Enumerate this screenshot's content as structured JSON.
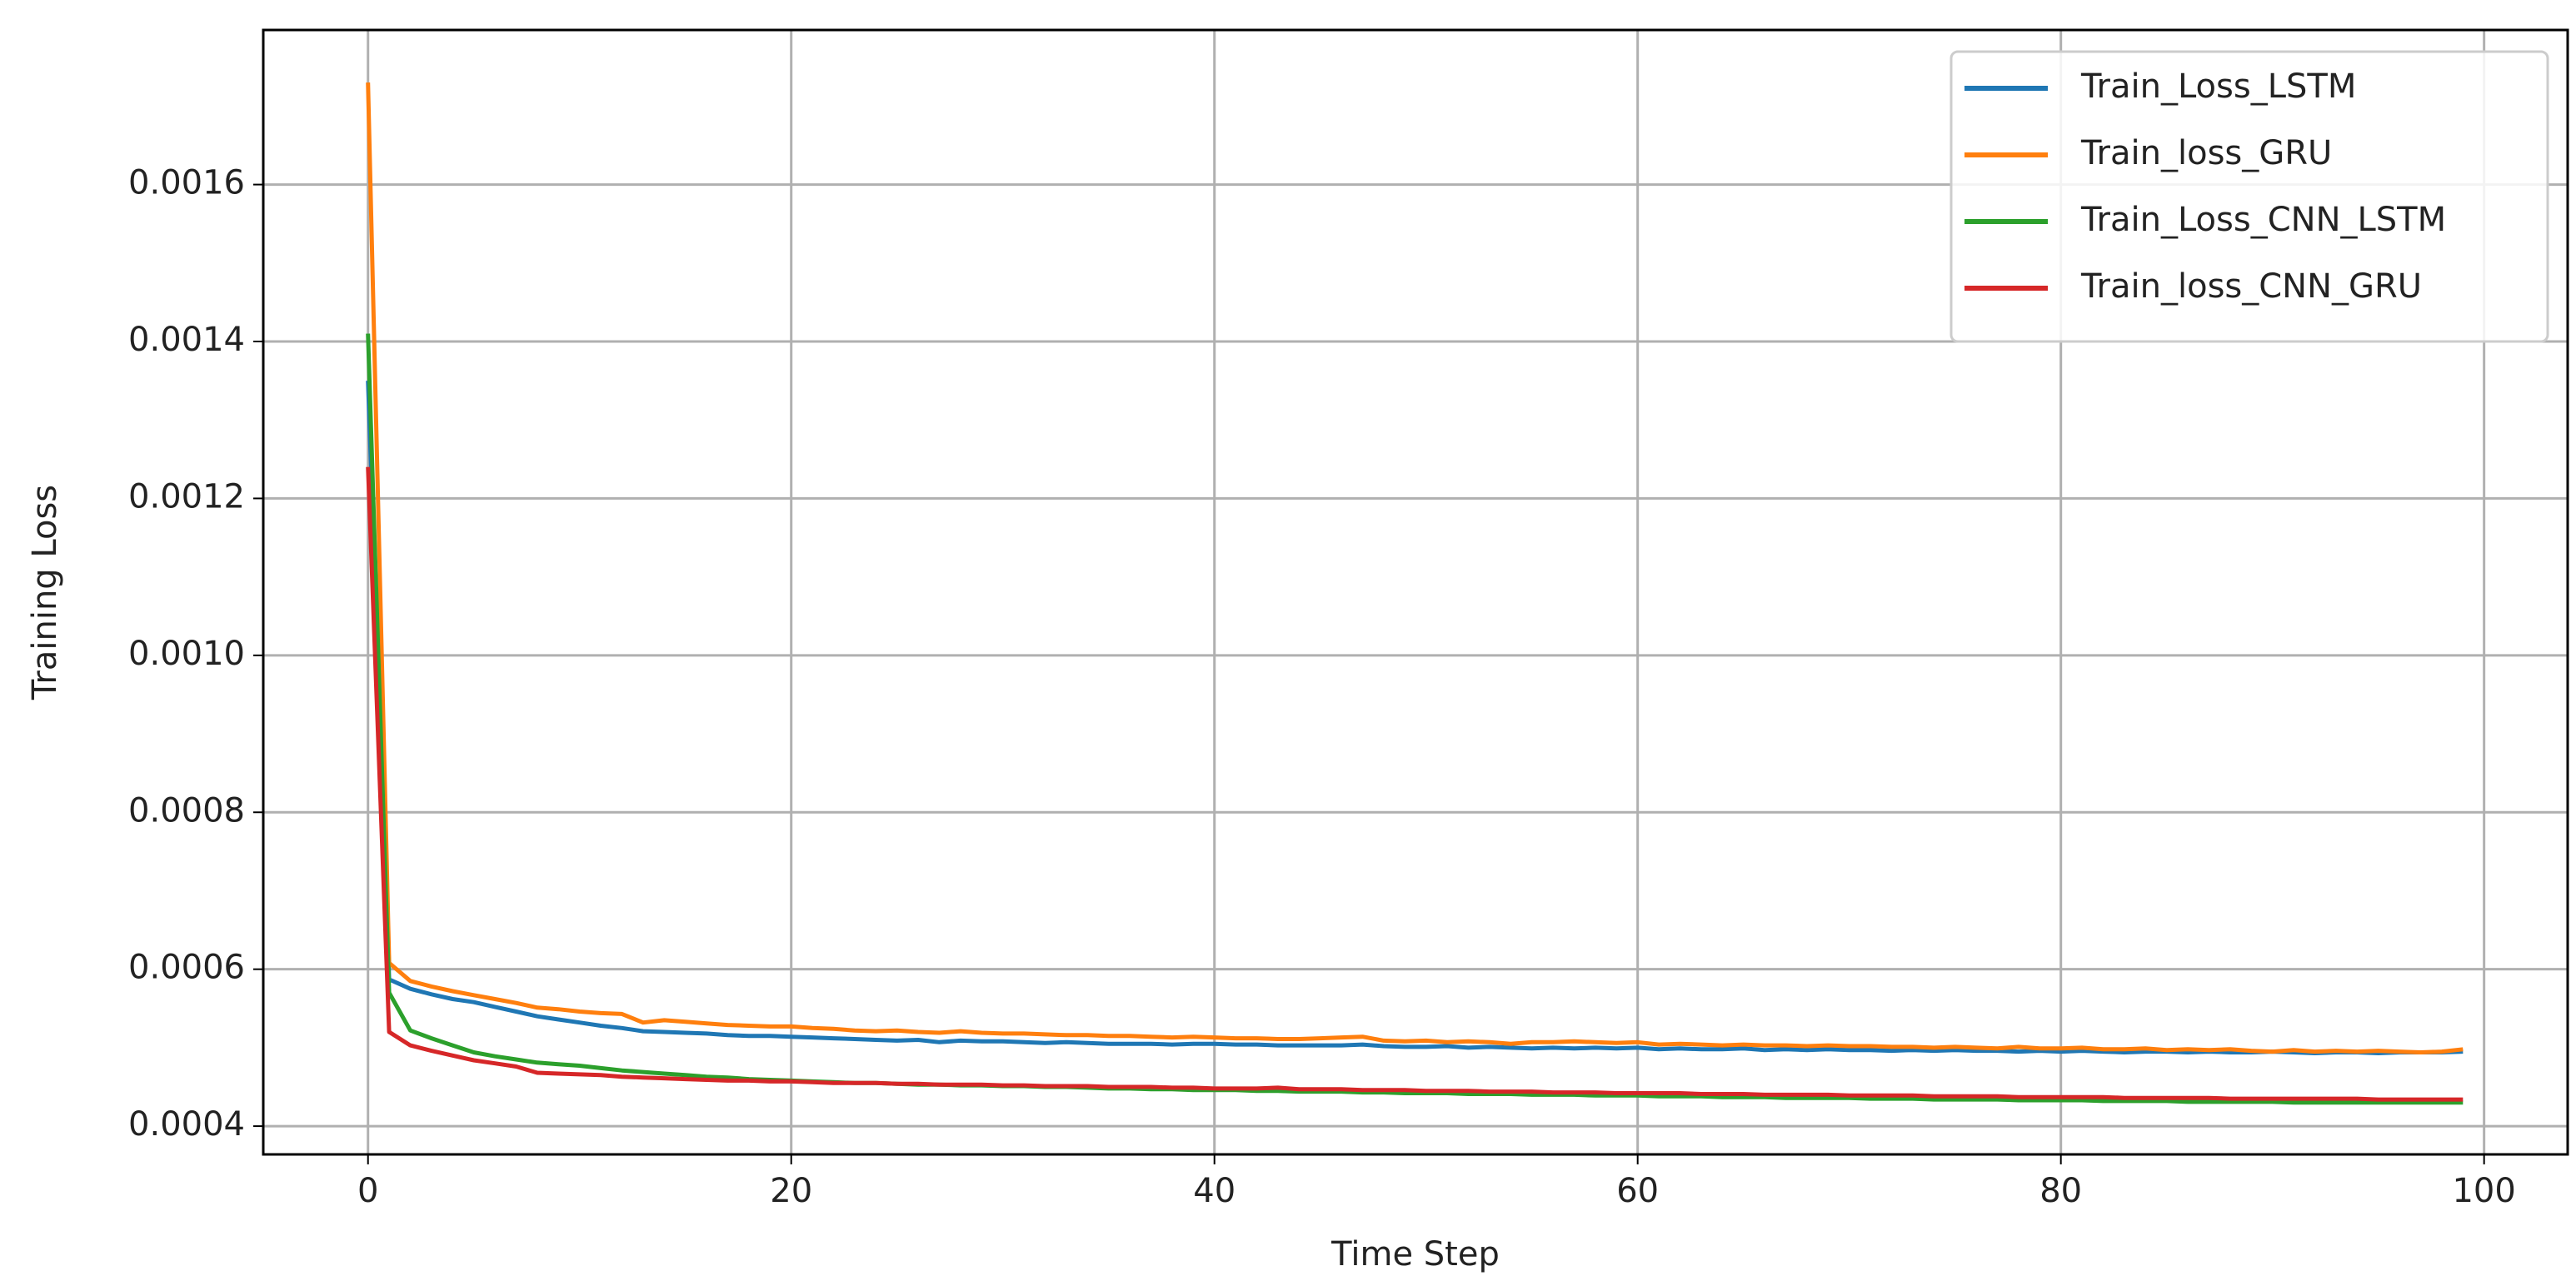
{
  "chart_data": {
    "type": "line",
    "x_label": "Time Step",
    "y_label": "Training Loss",
    "x": [
      0,
      1,
      2,
      3,
      4,
      5,
      6,
      7,
      8,
      9,
      10,
      11,
      12,
      13,
      14,
      15,
      16,
      17,
      18,
      19,
      20,
      21,
      22,
      23,
      24,
      25,
      26,
      27,
      28,
      29,
      30,
      31,
      32,
      33,
      34,
      35,
      36,
      37,
      38,
      39,
      40,
      41,
      42,
      43,
      44,
      45,
      46,
      47,
      48,
      49,
      50,
      51,
      52,
      53,
      54,
      55,
      56,
      57,
      58,
      59,
      60,
      61,
      62,
      63,
      64,
      65,
      66,
      67,
      68,
      69,
      70,
      71,
      72,
      73,
      74,
      75,
      76,
      77,
      78,
      79,
      80,
      81,
      82,
      83,
      84,
      85,
      86,
      87,
      88,
      89,
      90,
      91,
      92,
      93,
      94,
      95,
      96,
      97,
      98,
      99
    ],
    "series": [
      {
        "name": "Train_Loss_LSTM",
        "color": "#1f77b4",
        "values": [
          0.00135,
          0.000587,
          0.000575,
          0.000568,
          0.000562,
          0.000558,
          0.000552,
          0.000546,
          0.00054,
          0.000536,
          0.000532,
          0.000528,
          0.000525,
          0.000521,
          0.00052,
          0.000519,
          0.000518,
          0.000516,
          0.000515,
          0.000515,
          0.000514,
          0.000513,
          0.000512,
          0.000511,
          0.00051,
          0.000509,
          0.00051,
          0.000507,
          0.000509,
          0.000508,
          0.000508,
          0.000507,
          0.000506,
          0.000507,
          0.000506,
          0.000505,
          0.000505,
          0.000505,
          0.000504,
          0.000505,
          0.000505,
          0.000504,
          0.000504,
          0.000503,
          0.000503,
          0.000503,
          0.000503,
          0.000504,
          0.000502,
          0.000501,
          0.000501,
          0.000502,
          0.0005,
          0.000501,
          0.0005,
          0.000499,
          0.0005,
          0.000499,
          0.0005,
          0.000499,
          0.0005,
          0.000498,
          0.000499,
          0.000498,
          0.000498,
          0.000499,
          0.000497,
          0.000498,
          0.000497,
          0.000498,
          0.000497,
          0.000497,
          0.000496,
          0.000497,
          0.000496,
          0.000497,
          0.000496,
          0.000496,
          0.000495,
          0.000496,
          0.000495,
          0.000496,
          0.000495,
          0.000494,
          0.000495,
          0.000495,
          0.000494,
          0.000495,
          0.000494,
          0.000494,
          0.000495,
          0.000494,
          0.000493,
          0.000494,
          0.000494,
          0.000493,
          0.000494,
          0.000494,
          0.000494,
          0.000495
        ]
      },
      {
        "name": "Train_loss_GRU",
        "color": "#ff7f0e",
        "values": [
          0.00173,
          0.000608,
          0.000585,
          0.000578,
          0.000572,
          0.000567,
          0.000562,
          0.000557,
          0.000551,
          0.000549,
          0.000546,
          0.000544,
          0.000543,
          0.000532,
          0.000535,
          0.000533,
          0.000531,
          0.000529,
          0.000528,
          0.000527,
          0.000527,
          0.000525,
          0.000524,
          0.000522,
          0.000521,
          0.000522,
          0.00052,
          0.000519,
          0.000521,
          0.000519,
          0.000518,
          0.000518,
          0.000517,
          0.000516,
          0.000516,
          0.000515,
          0.000515,
          0.000514,
          0.000513,
          0.000514,
          0.000513,
          0.000512,
          0.000512,
          0.000511,
          0.000511,
          0.000512,
          0.000513,
          0.000514,
          0.000509,
          0.000508,
          0.000509,
          0.000507,
          0.000508,
          0.000507,
          0.000505,
          0.000507,
          0.000507,
          0.000508,
          0.000507,
          0.000506,
          0.000507,
          0.000504,
          0.000505,
          0.000504,
          0.000503,
          0.000504,
          0.000503,
          0.000503,
          0.000502,
          0.000503,
          0.000502,
          0.000502,
          0.000501,
          0.000501,
          0.0005,
          0.000501,
          0.0005,
          0.000499,
          0.000501,
          0.000499,
          0.000499,
          0.0005,
          0.000498,
          0.000498,
          0.000499,
          0.000497,
          0.000498,
          0.000497,
          0.000498,
          0.000496,
          0.000495,
          0.000497,
          0.000495,
          0.000496,
          0.000495,
          0.000496,
          0.000495,
          0.000494,
          0.000495,
          0.000498
        ]
      },
      {
        "name": "Train_Loss_CNN_LSTM",
        "color": "#2ca02c",
        "values": [
          0.00141,
          0.00057,
          0.000522,
          0.000512,
          0.000503,
          0.000494,
          0.000489,
          0.000485,
          0.000481,
          0.000479,
          0.000477,
          0.000474,
          0.000471,
          0.000469,
          0.000467,
          0.000465,
          0.000463,
          0.000462,
          0.00046,
          0.000459,
          0.000458,
          0.000457,
          0.000456,
          0.000455,
          0.000455,
          0.000454,
          0.000453,
          0.000453,
          0.000452,
          0.000452,
          0.000451,
          0.000451,
          0.00045,
          0.00045,
          0.000449,
          0.000448,
          0.000448,
          0.000447,
          0.000447,
          0.000446,
          0.000446,
          0.000446,
          0.000445,
          0.000445,
          0.000444,
          0.000444,
          0.000444,
          0.000443,
          0.000443,
          0.000442,
          0.000442,
          0.000442,
          0.000441,
          0.000441,
          0.000441,
          0.00044,
          0.00044,
          0.00044,
          0.000439,
          0.000439,
          0.000439,
          0.000438,
          0.000438,
          0.000438,
          0.000437,
          0.000437,
          0.000437,
          0.000436,
          0.000436,
          0.000436,
          0.000436,
          0.000435,
          0.000435,
          0.000435,
          0.000434,
          0.000434,
          0.000434,
          0.000434,
          0.000433,
          0.000433,
          0.000433,
          0.000433,
          0.000432,
          0.000432,
          0.000432,
          0.000432,
          0.000431,
          0.000431,
          0.000431,
          0.000431,
          0.000431,
          0.00043,
          0.00043,
          0.00043,
          0.00043,
          0.00043,
          0.00043,
          0.00043,
          0.00043,
          0.00043
        ]
      },
      {
        "name": "Train_loss_CNN_GRU",
        "color": "#d62728",
        "values": [
          0.00124,
          0.00052,
          0.000503,
          0.000496,
          0.00049,
          0.000484,
          0.00048,
          0.000476,
          0.000468,
          0.000467,
          0.000466,
          0.000465,
          0.000463,
          0.000462,
          0.000461,
          0.00046,
          0.000459,
          0.000458,
          0.000458,
          0.000457,
          0.000457,
          0.000456,
          0.000455,
          0.000455,
          0.000455,
          0.000454,
          0.000454,
          0.000453,
          0.000453,
          0.000453,
          0.000452,
          0.000452,
          0.000451,
          0.000451,
          0.000451,
          0.00045,
          0.00045,
          0.00045,
          0.000449,
          0.000449,
          0.000448,
          0.000448,
          0.000448,
          0.000449,
          0.000447,
          0.000447,
          0.000447,
          0.000446,
          0.000446,
          0.000446,
          0.000445,
          0.000445,
          0.000445,
          0.000444,
          0.000444,
          0.000444,
          0.000443,
          0.000443,
          0.000443,
          0.000442,
          0.000442,
          0.000442,
          0.000442,
          0.000441,
          0.000441,
          0.000441,
          0.00044,
          0.00044,
          0.00044,
          0.00044,
          0.000439,
          0.000439,
          0.000439,
          0.000439,
          0.000438,
          0.000438,
          0.000438,
          0.000438,
          0.000437,
          0.000437,
          0.000437,
          0.000437,
          0.000437,
          0.000436,
          0.000436,
          0.000436,
          0.000436,
          0.000436,
          0.000435,
          0.000435,
          0.000435,
          0.000435,
          0.000435,
          0.000435,
          0.000435,
          0.000434,
          0.000434,
          0.000434,
          0.000434,
          0.000434
        ]
      }
    ],
    "xlim": [
      -4.95,
      103.95
    ],
    "xticks": [
      0,
      20,
      40,
      60,
      80,
      100
    ],
    "ylim": [
      0.000364,
      0.001797
    ],
    "yticks": [
      0.0004,
      0.0006,
      0.0008,
      {
        "value": 0.001,
        "label": "0.0010"
      },
      0.0012,
      0.0014,
      0.0016
    ],
    "grid": true,
    "legend": "upper right"
  }
}
